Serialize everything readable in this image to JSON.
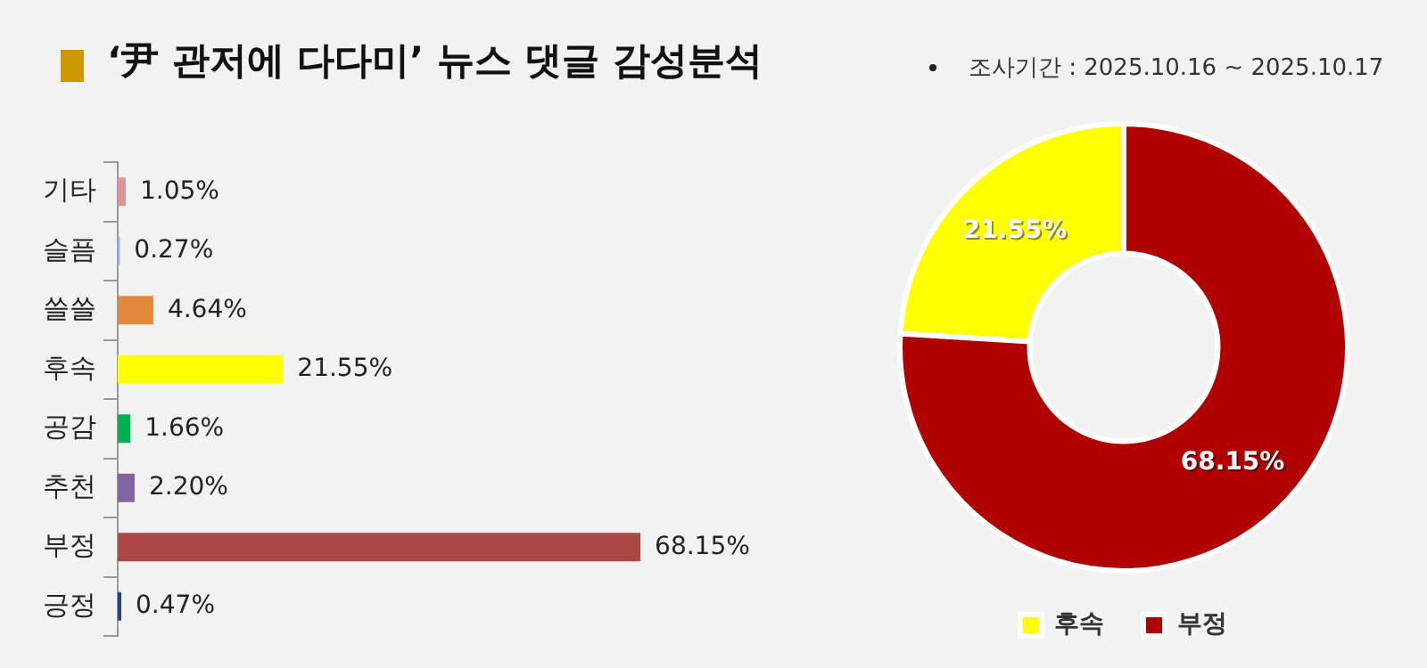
{
  "chart_data": [
    {
      "type": "bar",
      "orientation": "horizontal",
      "title": "‘尹 관저에 다다미’ 뉴스 댓글 감성분석",
      "annotations": [
        "조사기간 : 2025.10.16 ~ 2025.10.17"
      ],
      "categories": [
        "기타",
        "슬픔",
        "쓸쓸",
        "후속",
        "공감",
        "추천",
        "부정",
        "긍정"
      ],
      "values": [
        1.05,
        0.27,
        4.64,
        21.55,
        1.66,
        2.2,
        68.15,
        0.47
      ],
      "colors": [
        "#d99694",
        "#8eb4e3",
        "#e0883c",
        "#ffff00",
        "#00b050",
        "#8064a2",
        "#aa4643",
        "#1f497d"
      ],
      "value_labels": [
        "1.05%",
        "0.27%",
        "4.64%",
        "21.55%",
        "1.66%",
        "2.20%",
        "68.15%",
        "0.47%"
      ]
    },
    {
      "type": "donut",
      "categories": [
        "후속",
        "부정"
      ],
      "values": [
        21.55,
        68.15
      ],
      "colors": [
        "#ffff00",
        "#b00000"
      ],
      "value_labels": [
        "21.55%",
        "68.15%"
      ],
      "legend": "bottom"
    }
  ]
}
